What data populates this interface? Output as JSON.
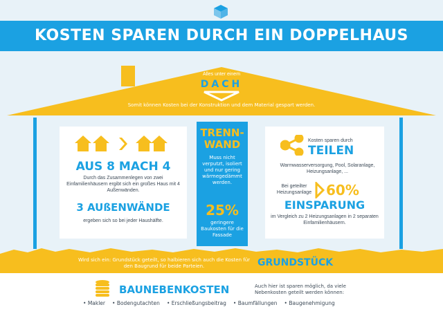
{
  "header": {
    "title": "KOSTEN SPAREN DURCH EIN DOPPELHAUS"
  },
  "roof": {
    "subtitle": "Alles unter einem",
    "word": "DACH",
    "note": "Somit können Kosten bei der Konstruktion und dem Material gespart werden."
  },
  "left_panel": {
    "headline": "AUS 8 MACH 4",
    "text": "Durch das Zusammenlegen von zwei Einfamilienhäusern ergibt sich ein großes Haus mit 4 Außenwänden.",
    "headline2": "3 AUßENWÄNDE",
    "text2": "ergeben sich so bei jeder Haushälfte."
  },
  "middle_panel": {
    "headline_1": "TRENN-",
    "headline_2": "WAND",
    "text": "Muss nicht verputzt, isoliert und nur gering wärmegedämmt werden.",
    "percent": "25%",
    "text2": "geringere Baukosten für die Fassade"
  },
  "right_panel": {
    "lead": "Kosten sparen durch",
    "headline": "TEILEN",
    "text": "Warmwasserversorgung, Pool, Solaranlage, Heizungsanlage, ...",
    "note": "Bei geteilter Heizungsanlage",
    "percent": "60%",
    "headline2": "EINSPARUNG",
    "text2": "im Vergleich zu 2 Heizungsanlagen in 2 separaten Einfamilienhäusern."
  },
  "ground": {
    "note": "Wird sich ein: Grundstück geteilt, so halbieren sich auch die Kosten für den Baugrund für beide Parteien.",
    "word": "GRUNDSTÜCK"
  },
  "bottom": {
    "title": "BAUNEBENKOSTEN",
    "desc": "Auch hier ist sparen möglich, da viele Nebenkosten geteilt werden können:",
    "items": [
      "Makler",
      "Bodengutachten",
      "Erschließungsbeitrag",
      "Baumfällungen",
      "Baugenehmigung"
    ]
  },
  "colors": {
    "blue": "#1ba1e2",
    "yellow": "#f7be1e",
    "sky": "#e8f2f8",
    "text": "#3d4a57"
  }
}
